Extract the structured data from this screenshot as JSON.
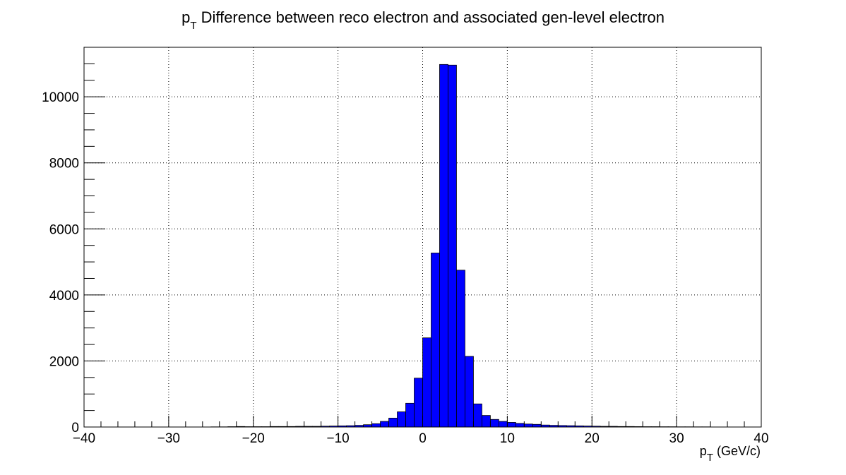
{
  "chart_data": {
    "type": "bar",
    "title": {
      "main_letter": "p",
      "subscript": "T",
      "rest": " Difference between reco electron and associated gen-level electron"
    },
    "xlabel": {
      "main_letter": "p",
      "subscript": "T",
      "unit": " (GeV/c)"
    },
    "ylabel": "",
    "xlim": [
      -40,
      40
    ],
    "ylim": [
      0,
      11500
    ],
    "bin_width": 1,
    "x_ticks": [
      -40,
      -30,
      -20,
      -10,
      0,
      10,
      20,
      30,
      40
    ],
    "x_tick_labels": [
      "−40",
      "−30",
      "−20",
      "−10",
      "0",
      "10",
      "20",
      "30",
      "40"
    ],
    "y_ticks": [
      0,
      2000,
      4000,
      6000,
      8000,
      10000
    ],
    "y_tick_labels": [
      "0",
      "2000",
      "4000",
      "6000",
      "8000",
      "10000"
    ],
    "grid": true,
    "legend": "none",
    "fill_color": "#0000ff",
    "edge_color": "#000000",
    "bins": [
      {
        "x_low": -25,
        "value": 5
      },
      {
        "x_low": -24,
        "value": 5
      },
      {
        "x_low": -23,
        "value": 10
      },
      {
        "x_low": -22,
        "value": 15
      },
      {
        "x_low": -21,
        "value": 10
      },
      {
        "x_low": -20,
        "value": 10
      },
      {
        "x_low": -19,
        "value": 10
      },
      {
        "x_low": -18,
        "value": 15
      },
      {
        "x_low": -17,
        "value": 15
      },
      {
        "x_low": -16,
        "value": 15
      },
      {
        "x_low": -15,
        "value": 20
      },
      {
        "x_low": -14,
        "value": 20
      },
      {
        "x_low": -13,
        "value": 20
      },
      {
        "x_low": -12,
        "value": 25
      },
      {
        "x_low": -11,
        "value": 30
      },
      {
        "x_low": -10,
        "value": 35
      },
      {
        "x_low": -9,
        "value": 40
      },
      {
        "x_low": -8,
        "value": 50
      },
      {
        "x_low": -7,
        "value": 70
      },
      {
        "x_low": -6,
        "value": 100
      },
      {
        "x_low": -5,
        "value": 170
      },
      {
        "x_low": -4,
        "value": 270
      },
      {
        "x_low": -3,
        "value": 460
      },
      {
        "x_low": -2,
        "value": 720
      },
      {
        "x_low": -1,
        "value": 1480
      },
      {
        "x_low": 0,
        "value": 2700
      },
      {
        "x_low": 1,
        "value": 5270
      },
      {
        "x_low": 2,
        "value": 10980
      },
      {
        "x_low": 3,
        "value": 10960
      },
      {
        "x_low": 4,
        "value": 4750
      },
      {
        "x_low": 5,
        "value": 2140
      },
      {
        "x_low": 6,
        "value": 700
      },
      {
        "x_low": 7,
        "value": 350
      },
      {
        "x_low": 8,
        "value": 230
      },
      {
        "x_low": 9,
        "value": 170
      },
      {
        "x_low": 10,
        "value": 140
      },
      {
        "x_low": 11,
        "value": 110
      },
      {
        "x_low": 12,
        "value": 90
      },
      {
        "x_low": 13,
        "value": 80
      },
      {
        "x_low": 14,
        "value": 60
      },
      {
        "x_low": 15,
        "value": 50
      },
      {
        "x_low": 16,
        "value": 45
      },
      {
        "x_low": 17,
        "value": 40
      },
      {
        "x_low": 18,
        "value": 35
      },
      {
        "x_low": 19,
        "value": 30
      },
      {
        "x_low": 20,
        "value": 25
      },
      {
        "x_low": 21,
        "value": 20
      },
      {
        "x_low": 22,
        "value": 20
      },
      {
        "x_low": 23,
        "value": 15
      },
      {
        "x_low": 24,
        "value": 15
      },
      {
        "x_low": 25,
        "value": 12
      },
      {
        "x_low": 26,
        "value": 10
      },
      {
        "x_low": 27,
        "value": 10
      },
      {
        "x_low": 28,
        "value": 8
      },
      {
        "x_low": 29,
        "value": 8
      },
      {
        "x_low": 30,
        "value": 6
      },
      {
        "x_low": 31,
        "value": 6
      },
      {
        "x_low": 32,
        "value": 5
      },
      {
        "x_low": 33,
        "value": 5
      }
    ]
  }
}
